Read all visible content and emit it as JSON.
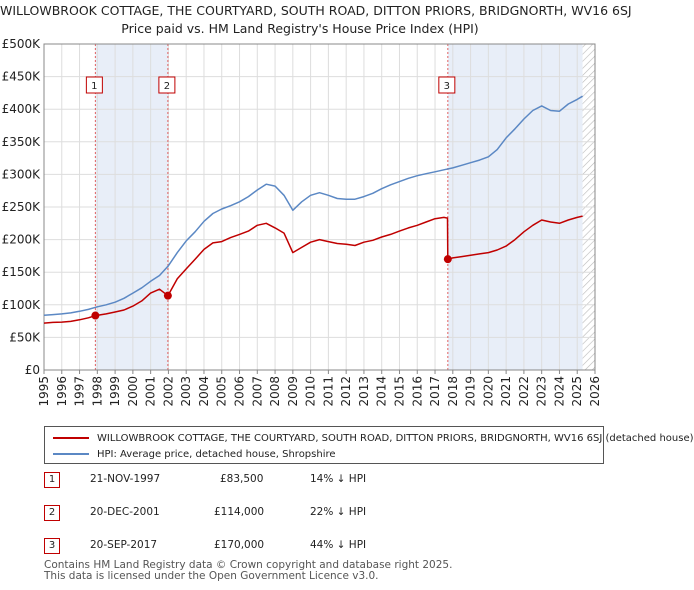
{
  "header": {
    "title_line1": "WILLOWBROOK COTTAGE, THE COURTYARD, SOUTH ROAD, DITTON PRIORS, BRIDGNORTH, WV16 6SJ",
    "title_line2": "Price paid vs. HM Land Registry's House Price Index (HPI)"
  },
  "chart_data": {
    "type": "line",
    "xlabel": "",
    "ylabel": "",
    "xlim": [
      1995,
      2026
    ],
    "ylim": [
      0,
      500000
    ],
    "y_ticks": [
      {
        "value": 0,
        "label": "£0"
      },
      {
        "value": 50000,
        "label": "£50K"
      },
      {
        "value": 100000,
        "label": "£100K"
      },
      {
        "value": 150000,
        "label": "£150K"
      },
      {
        "value": 200000,
        "label": "£200K"
      },
      {
        "value": 250000,
        "label": "£250K"
      },
      {
        "value": 300000,
        "label": "£300K"
      },
      {
        "value": 350000,
        "label": "£350K"
      },
      {
        "value": 400000,
        "label": "£400K"
      },
      {
        "value": 450000,
        "label": "£450K"
      },
      {
        "value": 500000,
        "label": "£500K"
      }
    ],
    "x_ticks": [
      "1995",
      "1996",
      "1997",
      "1998",
      "1999",
      "2000",
      "2001",
      "2002",
      "2003",
      "2004",
      "2005",
      "2006",
      "2007",
      "2008",
      "2009",
      "2010",
      "2011",
      "2012",
      "2013",
      "2014",
      "2015",
      "2016",
      "2017",
      "2018",
      "2019",
      "2020",
      "2021",
      "2022",
      "2023",
      "2024",
      "2025",
      "2026"
    ],
    "grid": true,
    "shaded_periods": [
      {
        "from": 1997.89,
        "to": 2001.97
      },
      {
        "from": 2017.72,
        "to": 2025.3
      }
    ],
    "hatched_after": 2025.3,
    "series": [
      {
        "name": "WILLOWBROOK COTTAGE, THE COURTYARD, SOUTH ROAD, DITTON PRIORS, BRIDGNORTH, WV16 6SJ (detached house)",
        "color": "#c00000",
        "x": [
          1995.0,
          1995.5,
          1996.0,
          1996.5,
          1997.0,
          1997.5,
          1997.89,
          1998.5,
          1999.0,
          1999.5,
          2000.0,
          2000.5,
          2001.0,
          2001.5,
          2001.97,
          2002.5,
          2003.0,
          2003.5,
          2004.0,
          2004.5,
          2005.0,
          2005.5,
          2006.0,
          2006.5,
          2007.0,
          2007.5,
          2008.0,
          2008.5,
          2009.0,
          2009.5,
          2010.0,
          2010.5,
          2011.0,
          2011.5,
          2012.0,
          2012.5,
          2013.0,
          2013.5,
          2014.0,
          2014.5,
          2015.0,
          2015.5,
          2016.0,
          2016.5,
          2017.0,
          2017.5,
          2017.7,
          2017.72,
          2018.0,
          2018.5,
          2019.0,
          2019.5,
          2020.0,
          2020.5,
          2021.0,
          2021.5,
          2022.0,
          2022.5,
          2023.0,
          2023.5,
          2024.0,
          2024.5,
          2025.0,
          2025.3
        ],
        "values": [
          72000,
          73000,
          73500,
          74500,
          77000,
          80000,
          83500,
          86000,
          89000,
          92000,
          98000,
          106000,
          118000,
          124000,
          114000,
          140000,
          155000,
          170000,
          185000,
          195000,
          197000,
          203000,
          208000,
          213000,
          222000,
          225000,
          218000,
          210000,
          180000,
          188000,
          196000,
          200000,
          197000,
          194000,
          193000,
          191000,
          196000,
          199000,
          204000,
          208000,
          213000,
          218000,
          222000,
          227000,
          232000,
          234000,
          233000,
          170000,
          172000,
          174000,
          176000,
          178000,
          180000,
          184000,
          190000,
          200000,
          212000,
          222000,
          230000,
          227000,
          225000,
          230000,
          234000,
          236000
        ]
      },
      {
        "name": "HPI: Average price, detached house, Shropshire",
        "color": "#5b88c4",
        "x": [
          1995.0,
          1995.5,
          1996.0,
          1996.5,
          1997.0,
          1997.5,
          1998.0,
          1998.5,
          1999.0,
          1999.5,
          2000.0,
          2000.5,
          2001.0,
          2001.5,
          2002.0,
          2002.5,
          2003.0,
          2003.5,
          2004.0,
          2004.5,
          2005.0,
          2005.5,
          2006.0,
          2006.5,
          2007.0,
          2007.5,
          2008.0,
          2008.5,
          2009.0,
          2009.5,
          2010.0,
          2010.5,
          2011.0,
          2011.5,
          2012.0,
          2012.5,
          2013.0,
          2013.5,
          2014.0,
          2014.5,
          2015.0,
          2015.5,
          2016.0,
          2016.5,
          2017.0,
          2017.5,
          2018.0,
          2018.5,
          2019.0,
          2019.5,
          2020.0,
          2020.5,
          2021.0,
          2021.5,
          2022.0,
          2022.5,
          2023.0,
          2023.5,
          2024.0,
          2024.5,
          2025.0,
          2025.3
        ],
        "values": [
          84000,
          85000,
          86000,
          87500,
          90000,
          93000,
          97000,
          100000,
          104000,
          110000,
          118000,
          126000,
          136000,
          145000,
          160000,
          180000,
          198000,
          212000,
          228000,
          240000,
          247000,
          252000,
          258000,
          266000,
          276000,
          285000,
          282000,
          268000,
          245000,
          258000,
          268000,
          272000,
          268000,
          263000,
          262000,
          262000,
          266000,
          271000,
          278000,
          284000,
          289000,
          294000,
          298000,
          301000,
          304000,
          307000,
          310000,
          314000,
          318000,
          322000,
          327000,
          338000,
          356000,
          370000,
          385000,
          398000,
          405000,
          398000,
          397000,
          408000,
          415000,
          420000
        ]
      }
    ],
    "sales": [
      {
        "id": "1",
        "x": 1997.89,
        "value": 83500
      },
      {
        "id": "2",
        "x": 2001.97,
        "value": 114000
      },
      {
        "id": "3",
        "x": 2017.72,
        "value": 170000
      }
    ]
  },
  "legend": {
    "items": [
      {
        "label": "WILLOWBROOK COTTAGE, THE COURTYARD, SOUTH ROAD, DITTON PRIORS, BRIDGNORTH, WV16 6SJ (detached house)",
        "color": "#c00000"
      },
      {
        "label": "HPI: Average price, detached house, Shropshire",
        "color": "#5b88c4"
      }
    ]
  },
  "sales_table": [
    {
      "id": "1",
      "date": "21-NOV-1997",
      "price": "£83,500",
      "hpi": "14% ↓ HPI"
    },
    {
      "id": "2",
      "date": "20-DEC-2001",
      "price": "£114,000",
      "hpi": "22% ↓ HPI"
    },
    {
      "id": "3",
      "date": "20-SEP-2017",
      "price": "£170,000",
      "hpi": "44% ↓ HPI"
    }
  ],
  "footer": {
    "line1": "Contains HM Land Registry data © Crown copyright and database right 2025.",
    "line2": "This data is licensed under the Open Government Licence v3.0."
  }
}
